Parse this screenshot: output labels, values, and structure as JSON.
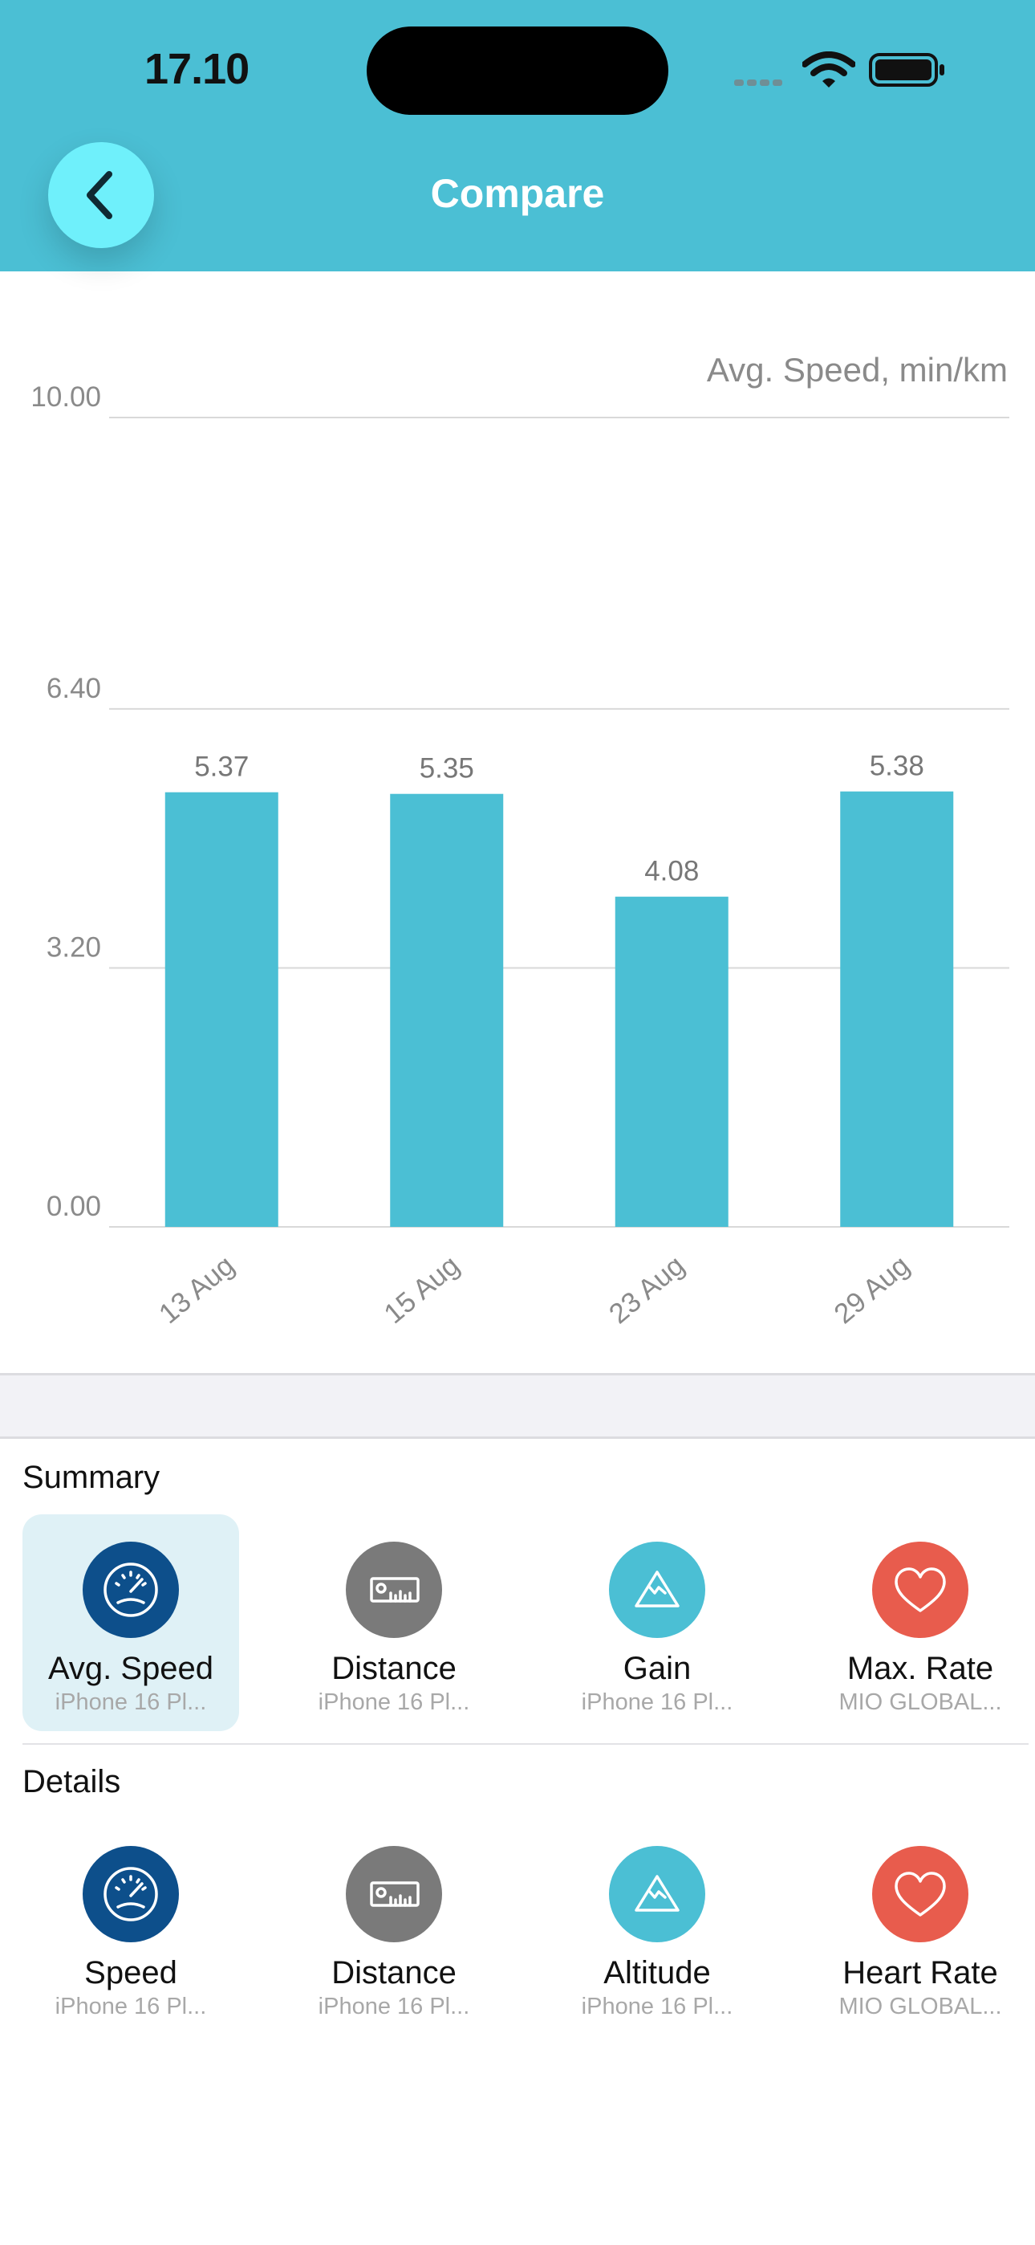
{
  "status": {
    "time": "17.10"
  },
  "header": {
    "title": "Compare"
  },
  "colors": {
    "accent": "#4bbfd4",
    "back_button": "#6ff0fb",
    "dark_blue": "#0d4f8b",
    "gray": "#7a7a7a",
    "coral": "#e85c4d"
  },
  "chart_data": {
    "type": "bar",
    "ylabel": "Avg. Speed, min/km",
    "yticks": [
      "10.00",
      "6.40",
      "3.20",
      "0.00"
    ],
    "ylim": [
      0,
      10
    ],
    "grid": true,
    "categories": [
      "13 Aug",
      "15 Aug",
      "23 Aug",
      "29 Aug"
    ],
    "values": [
      5.37,
      5.35,
      4.08,
      5.38
    ],
    "value_labels": [
      "5.37",
      "5.35",
      "4.08",
      "5.38"
    ]
  },
  "summary": {
    "title": "Summary",
    "items": [
      {
        "label": "Avg. Speed",
        "source": "iPhone 16 Pl...",
        "icon": "speedometer-icon",
        "color": "#0d4f8b",
        "selected": true
      },
      {
        "label": "Distance",
        "source": "iPhone 16 Pl...",
        "icon": "ruler-icon",
        "color": "#7a7a7a"
      },
      {
        "label": "Gain",
        "source": "iPhone 16 Pl...",
        "icon": "mountain-icon",
        "color": "#4bbfd4"
      },
      {
        "label": "Max. Rate",
        "source": "MIO GLOBAL...",
        "icon": "heart-icon",
        "color": "#e85c4d"
      }
    ]
  },
  "details": {
    "title": "Details",
    "items": [
      {
        "label": "Speed",
        "source": "iPhone 16 Pl...",
        "icon": "speedometer-icon",
        "color": "#0d4f8b"
      },
      {
        "label": "Distance",
        "source": "iPhone 16 Pl...",
        "icon": "ruler-icon",
        "color": "#7a7a7a"
      },
      {
        "label": "Altitude",
        "source": "iPhone 16 Pl...",
        "icon": "mountain-icon",
        "color": "#4bbfd4"
      },
      {
        "label": "Heart Rate",
        "source": "MIO GLOBAL...",
        "icon": "heart-icon",
        "color": "#e85c4d"
      }
    ]
  }
}
